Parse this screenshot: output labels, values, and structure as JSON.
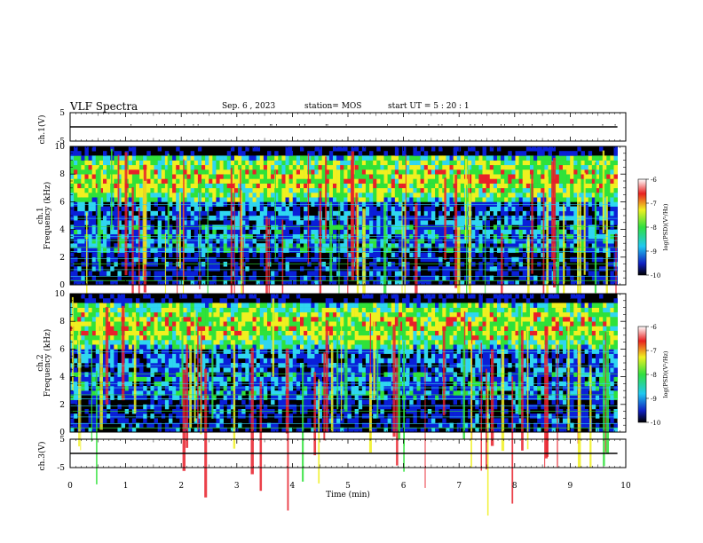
{
  "header": {
    "title": "VLF Spectra",
    "date": "Sep. 6 , 2023",
    "station": "station= MOS",
    "start": "start  UT =   5 : 20 : 1"
  },
  "panels": {
    "ch1_voltage": {
      "ylabel": "ch.1(V)",
      "yticks": [
        "5",
        "-5"
      ]
    },
    "ch1_spectrogram": {
      "ylabel": "ch.1\nFrequency (kHz)",
      "yticks": [
        "0",
        "2",
        "4",
        "6",
        "8",
        "10"
      ]
    },
    "ch2_spectrogram": {
      "ylabel": "ch.2\nFrequency (kHz)",
      "yticks": [
        "0",
        "2",
        "4",
        "6",
        "8",
        "10"
      ]
    },
    "ch3_voltage": {
      "ylabel": "ch.3(V)",
      "yticks": [
        "5",
        "-5"
      ]
    }
  },
  "xaxis": {
    "label": "Time  (min)",
    "ticks": [
      "0",
      "1",
      "2",
      "3",
      "4",
      "5",
      "6",
      "7",
      "8",
      "9",
      "10"
    ]
  },
  "colorbar": {
    "label": "log(PSD)(V²/Hz)",
    "ticks": [
      "-6",
      "-7",
      "-8",
      "-9",
      "-10"
    ]
  },
  "colors": {
    "black": "#000000",
    "blue": "#0a1fd8",
    "cyan": "#2fd6f0",
    "green": "#2fe23a",
    "yellow": "#f0f020",
    "red": "#e8202a"
  },
  "chart_data": [
    {
      "type": "line",
      "title": "",
      "xlabel": "",
      "ylabel": "ch.1(V)",
      "xlim": [
        0,
        10
      ],
      "ylim": [
        -5,
        5
      ],
      "series": [
        {
          "x": [
            0,
            9.85
          ],
          "y": [
            0,
            0
          ]
        }
      ]
    },
    {
      "type": "heatmap",
      "xlabel": "Time  (min)",
      "ylabel": "ch.1 Frequency (kHz)",
      "xlim": [
        0,
        9.85
      ],
      "ylim": [
        0,
        10
      ],
      "color_scale": "log(PSD)(V²/Hz)",
      "zlim": [
        -10,
        -6
      ],
      "narrowband_lines_kHz": [
        0.3,
        0.6,
        1.1,
        1.5,
        1.9,
        2.4,
        2.7,
        3.2,
        3.5,
        4.2,
        4.8,
        5.8
      ]
    },
    {
      "type": "heatmap",
      "xlabel": "Time  (min)",
      "ylabel": "ch.2 Frequency (kHz)",
      "xlim": [
        0,
        9.85
      ],
      "ylim": [
        0,
        10
      ],
      "color_scale": "log(PSD)(V²/Hz)",
      "zlim": [
        -10,
        -6
      ],
      "narrowband_lines_kHz": [
        0.3,
        0.6,
        1.1,
        1.5,
        1.9,
        2.4,
        2.7,
        3.2,
        3.5,
        4.2,
        4.8,
        5.8
      ]
    },
    {
      "type": "line",
      "title": "",
      "xlabel": "Time  (min)",
      "ylabel": "ch.3(V)",
      "xlim": [
        0,
        10
      ],
      "ylim": [
        -5,
        5
      ],
      "series": [
        {
          "x": [
            0,
            9.85
          ],
          "y": [
            0,
            0
          ]
        }
      ]
    }
  ]
}
